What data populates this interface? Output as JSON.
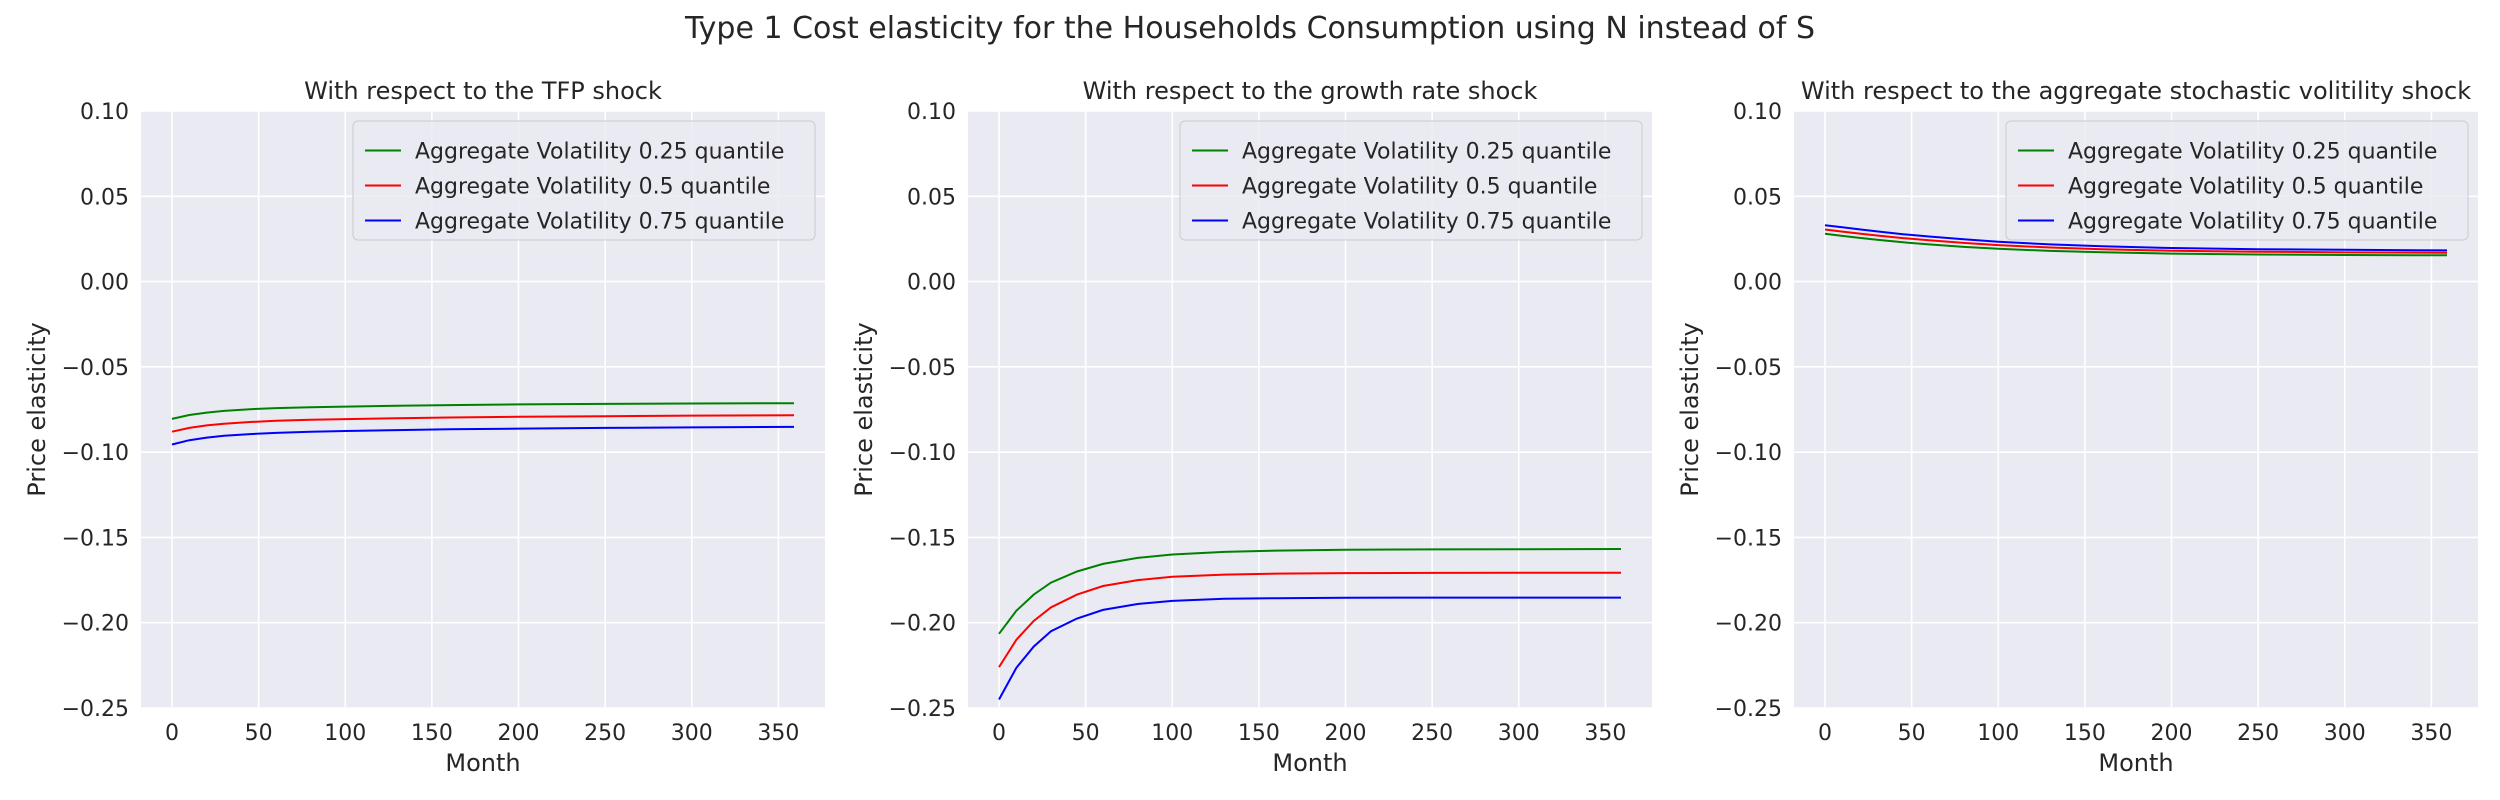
{
  "figure": {
    "suptitle": "Type 1 Cost elasticity for the Households Consumption using N instead of S"
  },
  "colors": {
    "background": "#eaeaf2",
    "grid": "#ffffff",
    "series": [
      "#008000",
      "#ff0000",
      "#0000ff"
    ]
  },
  "chart_data": [
    {
      "type": "line",
      "title": "With respect to the TFP shock",
      "xlabel": "Month",
      "ylabel": "Price elasticity",
      "xlim": [
        -17.9,
        376.9
      ],
      "ylim": [
        -0.25,
        0.1
      ],
      "xticks": [
        0,
        50,
        100,
        150,
        200,
        250,
        300,
        350
      ],
      "yticks": [
        0.1,
        0.05,
        0.0,
        -0.05,
        -0.1,
        -0.15,
        -0.2,
        -0.25
      ],
      "ytick_labels": [
        "0.10",
        "0.05",
        "0.00",
        "−0.05",
        "−0.10",
        "−0.15",
        "−0.20",
        "−0.25"
      ],
      "grid": true,
      "legend_position": "top-right",
      "x": [
        0,
        10,
        20,
        30,
        45,
        60,
        80,
        100,
        130,
        160,
        200,
        250,
        300,
        359
      ],
      "series": [
        {
          "name": "Aggregate Volatility 0.25 quantile",
          "color": "#008000",
          "values": [
            -0.0805,
            -0.0782,
            -0.0768,
            -0.0758,
            -0.0748,
            -0.0742,
            -0.0737,
            -0.0733,
            -0.0728,
            -0.0724,
            -0.072,
            -0.0717,
            -0.0715,
            -0.0713
          ]
        },
        {
          "name": "Aggregate Volatility 0.5 quantile",
          "color": "#ff0000",
          "values": [
            -0.088,
            -0.0858,
            -0.0843,
            -0.0833,
            -0.0823,
            -0.0816,
            -0.081,
            -0.0806,
            -0.0801,
            -0.0797,
            -0.0793,
            -0.0789,
            -0.0786,
            -0.0784
          ]
        },
        {
          "name": "Aggregate Volatility 0.75 quantile",
          "color": "#0000ff",
          "values": [
            -0.0955,
            -0.093,
            -0.0915,
            -0.0904,
            -0.0894,
            -0.0887,
            -0.0881,
            -0.0876,
            -0.0871,
            -0.0866,
            -0.0862,
            -0.0858,
            -0.0855,
            -0.0852
          ]
        }
      ]
    },
    {
      "type": "line",
      "title": "With respect to the growth rate shock",
      "xlabel": "Month",
      "ylabel": "Price elasticity",
      "xlim": [
        -17.9,
        376.9
      ],
      "ylim": [
        -0.25,
        0.1
      ],
      "xticks": [
        0,
        50,
        100,
        150,
        200,
        250,
        300,
        350
      ],
      "yticks": [
        0.1,
        0.05,
        0.0,
        -0.05,
        -0.1,
        -0.15,
        -0.2,
        -0.25
      ],
      "ytick_labels": [
        "0.10",
        "0.05",
        "0.00",
        "−0.05",
        "−0.10",
        "−0.15",
        "−0.20",
        "−0.25"
      ],
      "grid": true,
      "legend_position": "top-right",
      "x": [
        0,
        10,
        20,
        30,
        45,
        60,
        80,
        100,
        130,
        160,
        200,
        250,
        300,
        359
      ],
      "series": [
        {
          "name": "Aggregate Volatility 0.25 quantile",
          "color": "#008000",
          "values": [
            -0.2065,
            -0.193,
            -0.1835,
            -0.1765,
            -0.17,
            -0.1655,
            -0.162,
            -0.16,
            -0.1585,
            -0.1577,
            -0.1572,
            -0.157,
            -0.1569,
            -0.1568
          ]
        },
        {
          "name": "Aggregate Volatility 0.5 quantile",
          "color": "#ff0000",
          "values": [
            -0.226,
            -0.21,
            -0.199,
            -0.191,
            -0.1835,
            -0.1785,
            -0.175,
            -0.173,
            -0.1718,
            -0.1712,
            -0.1709,
            -0.1708,
            -0.1707,
            -0.1707
          ]
        },
        {
          "name": "Aggregate Volatility 0.75 quantile",
          "color": "#0000ff",
          "values": [
            -0.245,
            -0.2265,
            -0.214,
            -0.205,
            -0.1975,
            -0.1925,
            -0.189,
            -0.1872,
            -0.186,
            -0.1856,
            -0.1854,
            -0.1853,
            -0.1853,
            -0.1853
          ]
        }
      ]
    },
    {
      "type": "line",
      "title": "With respect to the aggregate stochastic volitility shock",
      "xlabel": "Month",
      "ylabel": "Price elasticity",
      "xlim": [
        -17.9,
        376.9
      ],
      "ylim": [
        -0.25,
        0.1
      ],
      "xticks": [
        0,
        50,
        100,
        150,
        200,
        250,
        300,
        350
      ],
      "yticks": [
        0.1,
        0.05,
        0.0,
        -0.05,
        -0.1,
        -0.15,
        -0.2,
        -0.25
      ],
      "ytick_labels": [
        "0.10",
        "0.05",
        "0.00",
        "−0.05",
        "−0.10",
        "−0.15",
        "−0.20",
        "−0.25"
      ],
      "grid": true,
      "legend_position": "top-right",
      "x": [
        0,
        10,
        20,
        30,
        45,
        60,
        80,
        100,
        130,
        160,
        200,
        250,
        300,
        359
      ],
      "series": [
        {
          "name": "Aggregate Volatility 0.25 quantile",
          "color": "#008000",
          "values": [
            0.028,
            0.0268,
            0.0256,
            0.0245,
            0.023,
            0.0218,
            0.0203,
            0.0192,
            0.018,
            0.0172,
            0.0164,
            0.0159,
            0.0156,
            0.0154
          ]
        },
        {
          "name": "Aggregate Volatility 0.5 quantile",
          "color": "#ff0000",
          "values": [
            0.0305,
            0.0293,
            0.0281,
            0.027,
            0.0255,
            0.0242,
            0.0227,
            0.0214,
            0.02,
            0.019,
            0.0181,
            0.0175,
            0.0171,
            0.0169
          ]
        },
        {
          "name": "Aggregate Volatility 0.75 quantile",
          "color": "#0000ff",
          "values": [
            0.033,
            0.0318,
            0.0306,
            0.0294,
            0.0278,
            0.0264,
            0.0248,
            0.0234,
            0.0218,
            0.0207,
            0.0197,
            0.019,
            0.0186,
            0.0183
          ]
        }
      ]
    }
  ]
}
